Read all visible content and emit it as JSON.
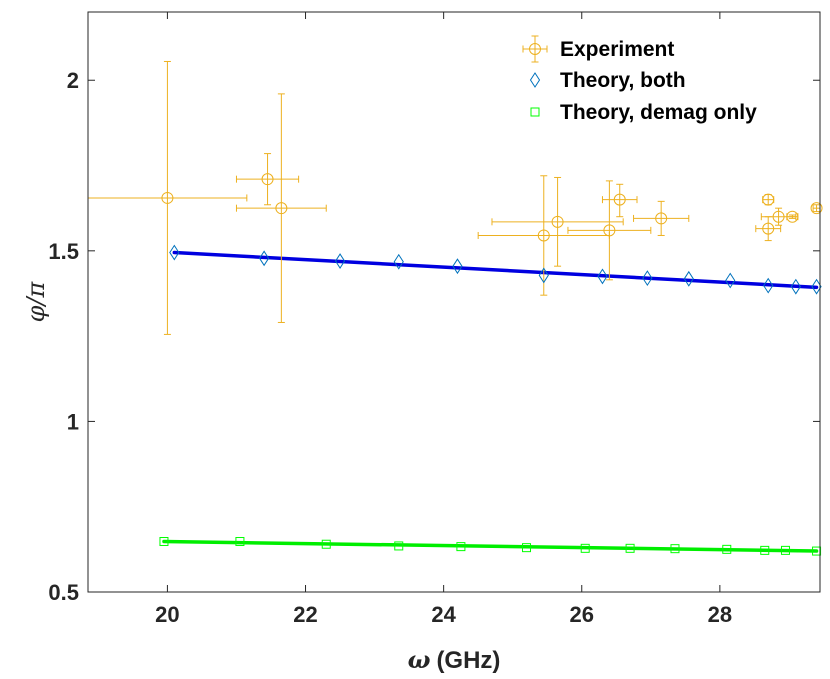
{
  "chart_data": {
    "type": "scatter",
    "title": "",
    "xlabel": {
      "symbol": "ω",
      "unit": "(GHz)"
    },
    "ylabel": {
      "symbol": "φ/π"
    },
    "xlim": [
      18.85,
      29.45
    ],
    "ylim": [
      0.5,
      2.2
    ],
    "xticks": [
      20,
      22,
      24,
      26,
      28
    ],
    "xtick_labels": [
      "20",
      "22",
      "24",
      "26",
      "28"
    ],
    "yticks": [
      0.5,
      1,
      1.5,
      2
    ],
    "ytick_labels": [
      "0.5",
      "1",
      "1.5",
      "2"
    ],
    "grid": false,
    "legend_position": "top-right",
    "series": [
      {
        "name": "Experiment",
        "marker": "circle",
        "color": "#EDB120",
        "error_bars": true,
        "points": [
          {
            "x": 20.0,
            "y": 1.655,
            "xerr": 1.15,
            "ylo": 1.255,
            "yhi": 2.055
          },
          {
            "x": 21.45,
            "y": 1.71,
            "xerr": 0.45,
            "ylo": 1.635,
            "yhi": 1.785
          },
          {
            "x": 21.65,
            "y": 1.625,
            "xerr": 0.65,
            "ylo": 1.29,
            "yhi": 1.96
          },
          {
            "x": 25.45,
            "y": 1.545,
            "xerr": 0.95,
            "ylo": 1.37,
            "yhi": 1.72
          },
          {
            "x": 25.65,
            "y": 1.585,
            "xerr": 0.95,
            "ylo": 1.455,
            "yhi": 1.715
          },
          {
            "x": 26.4,
            "y": 1.56,
            "xerr": 0.6,
            "ylo": 1.415,
            "yhi": 1.705
          },
          {
            "x": 26.55,
            "y": 1.65,
            "xerr": 0.25,
            "ylo": 1.6,
            "yhi": 1.695
          },
          {
            "x": 27.15,
            "y": 1.595,
            "xerr": 0.4,
            "ylo": 1.545,
            "yhi": 1.645
          },
          {
            "x": 28.7,
            "y": 1.565,
            "xerr": 0.18,
            "ylo": 1.53,
            "yhi": 1.6
          },
          {
            "x": 28.7,
            "y": 1.65,
            "xerr": 0.08,
            "ylo": 1.635,
            "yhi": 1.665
          },
          {
            "x": 28.85,
            "y": 1.6,
            "xerr": 0.25,
            "ylo": 1.575,
            "yhi": 1.625
          },
          {
            "x": 29.05,
            "y": 1.6,
            "xerr": 0.08,
            "ylo": 1.595,
            "yhi": 1.605
          },
          {
            "x": 29.4,
            "y": 1.625,
            "xerr": 0.05,
            "ylo": 1.615,
            "yhi": 1.635
          }
        ]
      },
      {
        "name": "Theory, both",
        "marker": "diamond",
        "color": "#0072BD",
        "fit_line": {
          "x": [
            20.1,
            29.4
          ],
          "y": [
            1.495,
            1.393
          ],
          "color": "#0000E0"
        },
        "points": [
          {
            "x": 20.1,
            "y": 1.495
          },
          {
            "x": 21.4,
            "y": 1.478
          },
          {
            "x": 22.5,
            "y": 1.47
          },
          {
            "x": 23.35,
            "y": 1.468
          },
          {
            "x": 24.2,
            "y": 1.455
          },
          {
            "x": 25.45,
            "y": 1.428
          },
          {
            "x": 26.3,
            "y": 1.425
          },
          {
            "x": 26.95,
            "y": 1.42
          },
          {
            "x": 27.55,
            "y": 1.418
          },
          {
            "x": 28.15,
            "y": 1.413
          },
          {
            "x": 28.7,
            "y": 1.398
          },
          {
            "x": 29.1,
            "y": 1.395
          },
          {
            "x": 29.4,
            "y": 1.395
          }
        ]
      },
      {
        "name": "Theory, demag only",
        "marker": "square",
        "color": "#00FF00",
        "fit_line": {
          "x": [
            19.95,
            29.4
          ],
          "y": [
            0.648,
            0.62
          ],
          "color": "#00EE00"
        },
        "points": [
          {
            "x": 19.95,
            "y": 0.648
          },
          {
            "x": 21.05,
            "y": 0.648
          },
          {
            "x": 22.3,
            "y": 0.64
          },
          {
            "x": 23.35,
            "y": 0.635
          },
          {
            "x": 24.25,
            "y": 0.633
          },
          {
            "x": 25.2,
            "y": 0.63
          },
          {
            "x": 26.05,
            "y": 0.628
          },
          {
            "x": 26.7,
            "y": 0.628
          },
          {
            "x": 27.35,
            "y": 0.627
          },
          {
            "x": 28.1,
            "y": 0.625
          },
          {
            "x": 28.65,
            "y": 0.622
          },
          {
            "x": 28.95,
            "y": 0.622
          },
          {
            "x": 29.4,
            "y": 0.62
          }
        ]
      }
    ]
  }
}
